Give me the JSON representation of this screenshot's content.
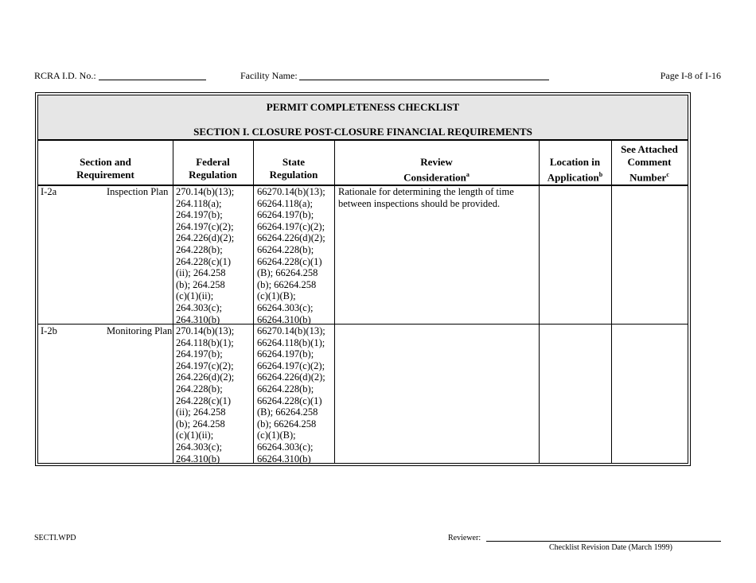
{
  "header": {
    "rcra_label": "RCRA I.D. No.:",
    "facility_label": "Facility Name:",
    "page": "Page I-8 of I-16"
  },
  "table": {
    "title": "PERMIT COMPLETENESS CHECKLIST",
    "section": "SECTION I.  CLOSURE POST-CLOSURE FINANCIAL REQUIREMENTS",
    "columns": [
      {
        "lines": [
          "Section and",
          "Requirement"
        ],
        "sup": ""
      },
      {
        "lines": [
          "Federal",
          "Regulation"
        ],
        "sup": ""
      },
      {
        "lines": [
          "State",
          "Regulation"
        ],
        "sup": ""
      },
      {
        "lines": [
          "Review",
          "Consideration"
        ],
        "sup": "a"
      },
      {
        "lines": [
          "Location in",
          "Application"
        ],
        "sup": "b"
      },
      {
        "lines": [
          "See Attached",
          "Comment",
          "Number"
        ],
        "sup": "c"
      }
    ],
    "rows": [
      {
        "id": "I-2a",
        "requirement": "Inspection Plan",
        "federal": [
          "270.14(b)(13);",
          "264.118(a);",
          "264.197(b);",
          "264.197(c)(2);",
          "264.226(d)(2);",
          "264.228(b);",
          "264.228(c)(1)",
          "(ii); 264.258",
          "(b); 264.258",
          "(c)(1)(ii);",
          "264.303(c);",
          "264.310(b)"
        ],
        "state": [
          "66270.14(b)(13);",
          "66264.118(a);",
          "66264.197(b);",
          "66264.197(c)(2);",
          "66264.226(d)(2);",
          "66264.228(b);",
          "66264.228(c)(1)",
          "(B); 66264.258",
          "(b); 66264.258",
          "(c)(1)(B);",
          "66264.303(c);",
          "66264.310(b)"
        ],
        "review": [
          "Rationale for determining the length of time",
          "between inspections should be provided."
        ],
        "location": "",
        "comment": ""
      },
      {
        "id": "I-2b",
        "requirement": "Monitoring Plan",
        "federal": [
          "270.14(b)(13);",
          "264.118(b)(1);",
          "264.197(b);",
          "264.197(c)(2);",
          "264.226(d)(2);",
          "264.228(b);",
          "264.228(c)(1)",
          "(ii); 264.258",
          "(b); 264.258",
          "(c)(1)(ii);",
          "264.303(c);",
          "264.310(b)"
        ],
        "state": [
          "66270.14(b)(13);",
          "66264.118(b)(1);",
          "66264.197(b);",
          "66264.197(c)(2);",
          "66264.226(d)(2);",
          "66264.228(b);",
          "66264.228(c)(1)",
          "(B); 66264.258",
          "(b); 66264.258",
          "(c)(1)(B);",
          "66264.303(c);",
          "66264.310(b)"
        ],
        "review": [],
        "location": "",
        "comment": ""
      }
    ]
  },
  "footer": {
    "file": "SECTI.WPD",
    "reviewer_label": "Reviewer:",
    "revision": "Checklist Revision Date (March 1999)"
  }
}
